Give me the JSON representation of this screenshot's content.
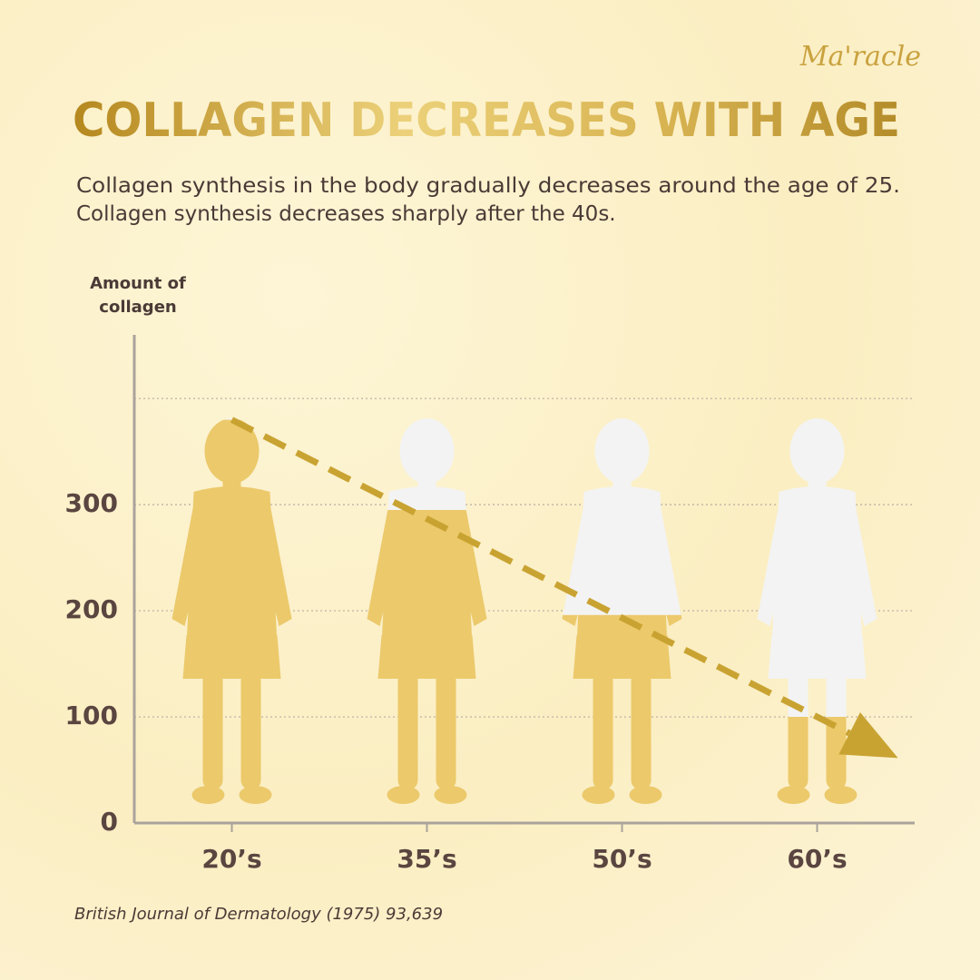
{
  "brand": "Ma'racle",
  "chart_data": {
    "type": "silhouette-bar",
    "title": "COLLAGEN DECREASES WITH AGE",
    "subtitle": [
      "Collagen synthesis in the body gradually decreases around the age of 25.",
      "Collagen synthesis decreases sharply after the 40s."
    ],
    "y_label": [
      "Amount of",
      "collagen"
    ],
    "categories": [
      "20’s",
      "35’s",
      "50’s",
      "60’s"
    ],
    "values": [
      380,
      295,
      196,
      100
    ],
    "color": "#ecc96a",
    "empty_color": "#f3f3f3",
    "ylim": [
      0,
      460
    ],
    "yticks": [
      0,
      100,
      200,
      300
    ],
    "gridlines": [
      100,
      200,
      300,
      400
    ],
    "trend_arrow": true,
    "source": "British Journal of Dermatology (1975) 93,639"
  }
}
